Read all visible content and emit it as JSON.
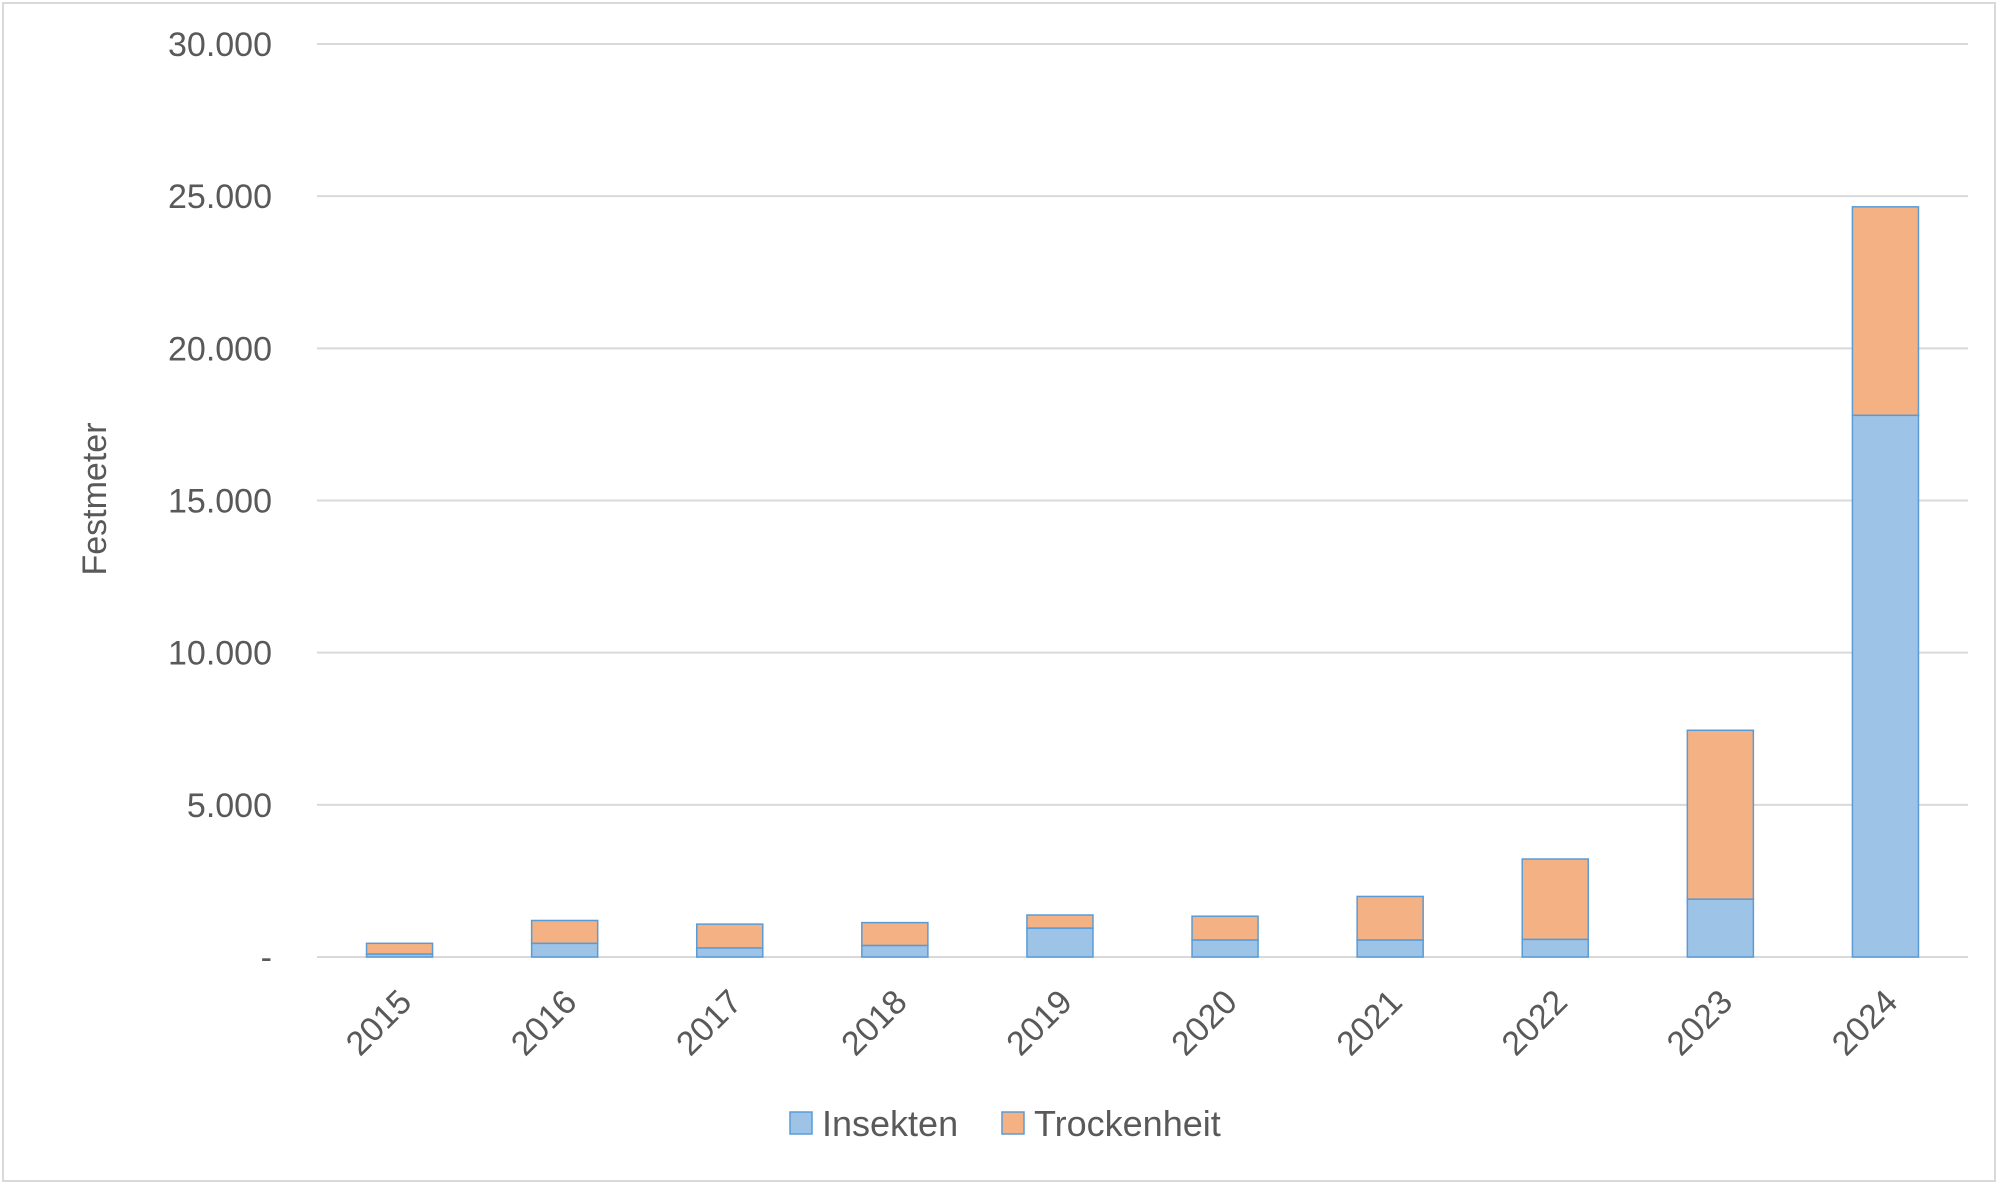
{
  "chart_data": {
    "type": "bar",
    "stacked": true,
    "categories": [
      "2015",
      "2016",
      "2017",
      "2018",
      "2019",
      "2020",
      "2021",
      "2022",
      "2023",
      "2024"
    ],
    "series": [
      {
        "name": "Insekten",
        "color": "#9dc3e6",
        "values": [
          100,
          450,
          300,
          380,
          950,
          560,
          560,
          580,
          1900,
          17800
        ]
      },
      {
        "name": "Trockenheit",
        "color": "#f4b183",
        "values": [
          350,
          750,
          780,
          750,
          430,
          780,
          1430,
          2640,
          5550,
          6850
        ]
      }
    ],
    "xlabel": "",
    "ylabel": "Festmeter",
    "ylim": [
      0,
      30000
    ],
    "yticks": [
      0,
      5000,
      10000,
      15000,
      20000,
      25000,
      30000
    ],
    "ytick_labels": [
      "-",
      "5.000",
      "10.000",
      "15.000",
      "20.000",
      "25.000",
      "30.000"
    ],
    "grid": true,
    "legend_position": "bottom",
    "colors": {
      "grid": "#d9d9d9",
      "text": "#595959",
      "bar_outline": "#5b9bd5"
    }
  }
}
